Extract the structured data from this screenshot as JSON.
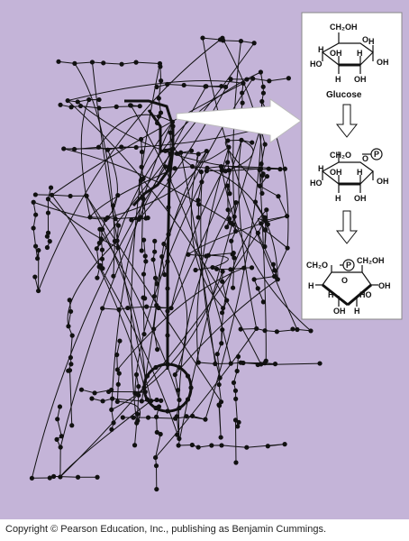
{
  "diagram": {
    "background_color": "#c4b4d8",
    "ink_color": "#111111",
    "inset_background": "#ffffff"
  },
  "inset": {
    "glucose": {
      "ch2oh": "CH₂OH",
      "o": "O",
      "h": "H",
      "oh": "OH",
      "ho": "HO",
      "label": "Glucose"
    },
    "g6p": {
      "ch2o": "CH₂O",
      "p": "P",
      "o": "O",
      "h": "H",
      "oh": "OH",
      "ho": "HO"
    },
    "f6p": {
      "ch2o": "CH₂O",
      "p": "P",
      "o": "O",
      "ch2oh": "CH₂OH",
      "h": "H",
      "oh": "OH",
      "ho": "HO"
    }
  },
  "footer": {
    "copyright": "Copyright © Pearson Education, Inc., publishing as Benjamin Cummings."
  }
}
